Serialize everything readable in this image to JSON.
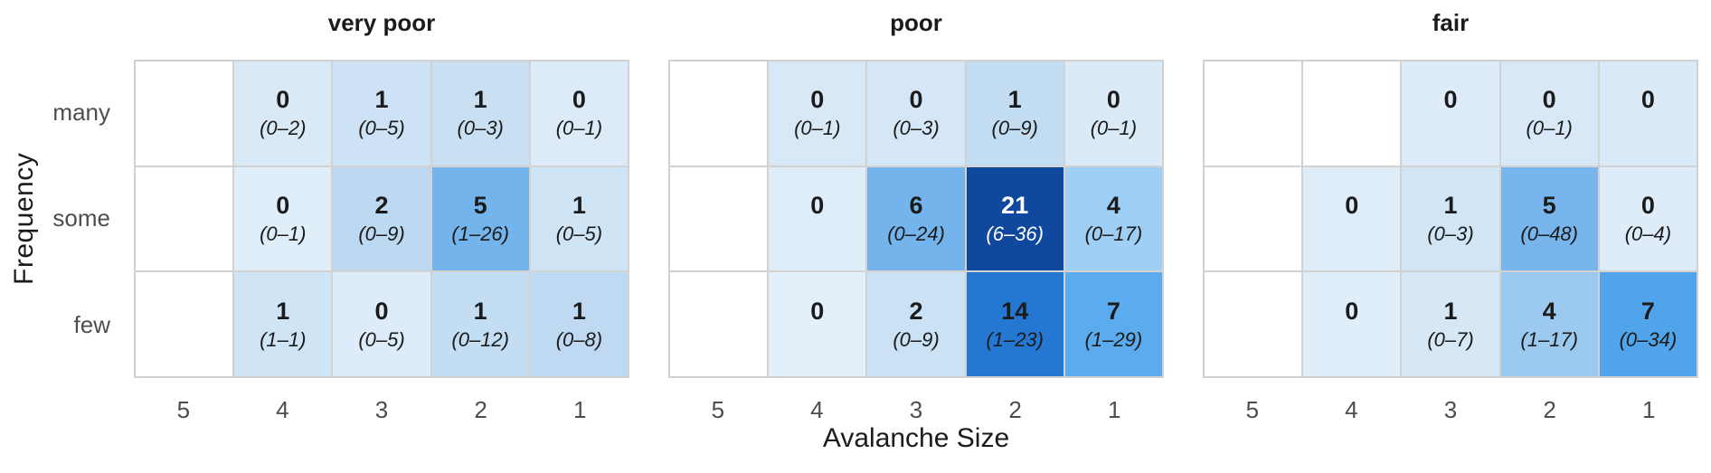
{
  "chart_data": {
    "type": "heatmap",
    "title": "",
    "xlabel": "Avalanche Size",
    "ylabel": "Frequency",
    "x_categories": [
      "5",
      "4",
      "3",
      "2",
      "1"
    ],
    "y_categories": [
      "many",
      "some",
      "few"
    ],
    "annotation_format": "count with interval below",
    "legend_position": "none",
    "grid": "on",
    "panels": [
      {
        "title": "very poor",
        "rows": [
          {
            "label": "many",
            "cells": [
              null,
              {
                "value": "0",
                "range": "(0–2)",
                "bg": "#DAE9F6"
              },
              {
                "value": "1",
                "range": "(0–5)",
                "bg": "#CDE2F4"
              },
              {
                "value": "1",
                "range": "(0–3)",
                "bg": "#C9E0F3"
              },
              {
                "value": "0",
                "range": "(0–1)",
                "bg": "#DCEBF7"
              }
            ]
          },
          {
            "label": "some",
            "cells": [
              null,
              {
                "value": "0",
                "range": "(0–1)",
                "bg": "#E0EEF9"
              },
              {
                "value": "2",
                "range": "(0–9)",
                "bg": "#BCD9F1"
              },
              {
                "value": "5",
                "range": "(1–26)",
                "bg": "#74B4EC"
              },
              {
                "value": "1",
                "range": "(0–5)",
                "bg": "#CFE4F5"
              }
            ]
          },
          {
            "label": "few",
            "cells": [
              null,
              {
                "value": "1",
                "range": "(1–1)",
                "bg": "#CFE4F5"
              },
              {
                "value": "0",
                "range": "(0–5)",
                "bg": "#DDECF8"
              },
              {
                "value": "1",
                "range": "(0–12)",
                "bg": "#C3DDF3"
              },
              {
                "value": "1",
                "range": "(0–8)",
                "bg": "#BED9F1"
              }
            ]
          }
        ]
      },
      {
        "title": "poor",
        "rows": [
          {
            "label": "many",
            "cells": [
              null,
              {
                "value": "0",
                "range": "(0–1)",
                "bg": "#D8E8F6"
              },
              {
                "value": "0",
                "range": "(0–3)",
                "bg": "#D5E7F6"
              },
              {
                "value": "1",
                "range": "(0–9)",
                "bg": "#C2DCF2"
              },
              {
                "value": "0",
                "range": "(0–1)",
                "bg": "#DBEAF7"
              }
            ]
          },
          {
            "label": "some",
            "cells": [
              null,
              {
                "value": "0",
                "range": "",
                "bg": "#DEEDF8"
              },
              {
                "value": "6",
                "range": "(0–24)",
                "bg": "#74B4EC"
              },
              {
                "value": "21",
                "range": "(6–36)",
                "bg": "#10489E",
                "fg": "#FFFFFF"
              },
              {
                "value": "4",
                "range": "(0–17)",
                "bg": "#9FCFF4"
              }
            ]
          },
          {
            "label": "few",
            "cells": [
              null,
              {
                "value": "0",
                "range": "",
                "bg": "#E3F0FA"
              },
              {
                "value": "2",
                "range": "(0–9)",
                "bg": "#CBE1F4"
              },
              {
                "value": "14",
                "range": "(1–23)",
                "bg": "#2478D2"
              },
              {
                "value": "7",
                "range": "(1–29)",
                "bg": "#5BACEE"
              }
            ]
          }
        ]
      },
      {
        "title": "fair",
        "rows": [
          {
            "label": "many",
            "cells": [
              null,
              null,
              {
                "value": "0",
                "range": "",
                "bg": "#DDECF8"
              },
              {
                "value": "0",
                "range": "(0–1)",
                "bg": "#D8E8F6"
              },
              {
                "value": "0",
                "range": "",
                "bg": "#DAEAF7"
              }
            ]
          },
          {
            "label": "some",
            "cells": [
              null,
              {
                "value": "0",
                "range": "",
                "bg": "#DEEDF8"
              },
              {
                "value": "1",
                "range": "(0–3)",
                "bg": "#D2E5F5"
              },
              {
                "value": "5",
                "range": "(0–48)",
                "bg": "#77B5EC"
              },
              {
                "value": "0",
                "range": "(0–4)",
                "bg": "#DDECF8"
              }
            ]
          },
          {
            "label": "few",
            "cells": [
              null,
              {
                "value": "0",
                "range": "",
                "bg": "#E0EEF9"
              },
              {
                "value": "1",
                "range": "(0–7)",
                "bg": "#D6E7F6"
              },
              {
                "value": "4",
                "range": "(1–17)",
                "bg": "#9CC9EF"
              },
              {
                "value": "7",
                "range": "(0–34)",
                "bg": "#4FA4EA"
              }
            ]
          }
        ]
      }
    ],
    "colors": {
      "grid_line": "#D2D2D2",
      "empty_cell": "#FFFFFF",
      "value_text": "#1B1B1B",
      "axis_text": "#4D4D4D",
      "max_fill": "#10489E",
      "max_fill_text": "#FFFFFF"
    }
  }
}
